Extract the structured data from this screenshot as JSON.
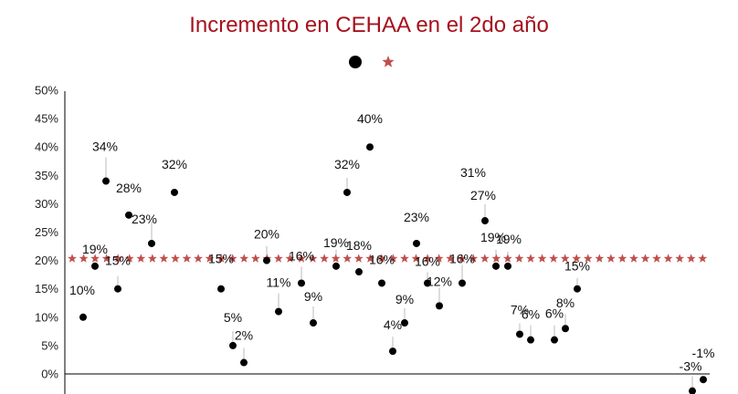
{
  "colors": {
    "title": "#a6121d",
    "points": "#000000",
    "avg_star": "#c0504d",
    "leader": "#bbbbbb",
    "axis": "#000000"
  },
  "legend": {
    "items": [
      {
        "marker": "circle",
        "color": "#000000"
      },
      {
        "marker": "star",
        "color": "#c0504d"
      }
    ]
  },
  "chart_data": {
    "type": "scatter",
    "title": "Incremento en CEHAA en el 2do año",
    "xlabel": "",
    "ylabel": "",
    "ylim": [
      -3,
      50
    ],
    "yticks": [
      "50%",
      "45%",
      "40%",
      "35%",
      "30%",
      "25%",
      "20%",
      "15%",
      "10%",
      "5%",
      "0%"
    ],
    "ytick_values": [
      50,
      45,
      40,
      35,
      30,
      25,
      20,
      15,
      10,
      5,
      0
    ],
    "grid": false,
    "legend_position": "top",
    "series": [
      {
        "marker": "circle",
        "values": [
          10,
          19,
          34,
          15,
          28,
          23,
          32,
          15,
          5,
          2,
          20,
          11,
          16,
          9,
          19,
          32,
          18,
          16,
          40,
          4,
          9,
          23,
          16,
          12,
          16,
          27,
          19,
          19,
          7,
          6,
          6,
          8,
          15,
          -3,
          -1
        ],
        "labels": [
          "10%",
          "19%",
          "34%",
          "15%",
          "28%",
          "23%",
          "32%",
          "15%",
          "5%",
          "2%",
          "20%",
          "11%",
          "16%",
          "9%",
          "19%",
          "32%",
          "18%",
          "16%",
          "40%",
          "4%",
          "9%",
          "23%",
          "16%",
          "12%",
          "16%",
          "27%",
          "19%",
          "19%",
          "7%",
          "6%",
          "6%",
          "8%",
          "15%",
          "-3%",
          "-1%"
        ],
        "extra_labels": [
          "31%"
        ]
      },
      {
        "marker": "star",
        "constant_value": 20.5
      }
    ]
  }
}
